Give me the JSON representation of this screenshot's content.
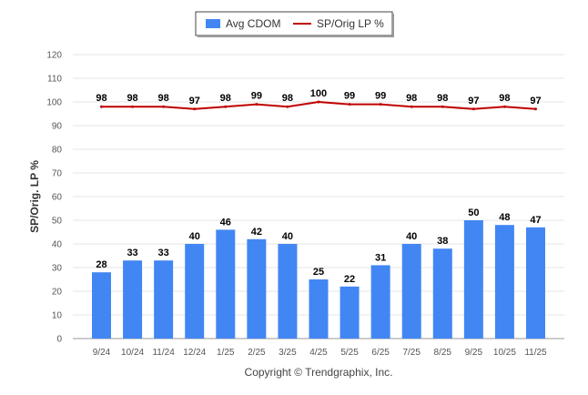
{
  "chart_data": {
    "type": "bar",
    "categories": [
      "9/24",
      "10/24",
      "11/24",
      "12/24",
      "1/25",
      "2/25",
      "3/25",
      "4/25",
      "5/25",
      "6/25",
      "7/25",
      "8/25",
      "9/25",
      "10/25",
      "11/25"
    ],
    "series": [
      {
        "name": "Avg CDOM",
        "type": "bar",
        "color": "#4286f4",
        "values": [
          28,
          33,
          33,
          40,
          46,
          42,
          40,
          25,
          22,
          31,
          40,
          38,
          50,
          48,
          47
        ]
      },
      {
        "name": "SP/Orig LP %",
        "type": "line",
        "color": "#c00000",
        "values": [
          98,
          98,
          98,
          97,
          98,
          99,
          98,
          100,
          99,
          99,
          98,
          98,
          97,
          98,
          97
        ]
      }
    ],
    "ylabel": "SP/Orig. LP %",
    "ylim": [
      0,
      120
    ],
    "yticks": [
      0,
      10,
      20,
      30,
      40,
      50,
      60,
      70,
      80,
      90,
      100,
      110,
      120
    ],
    "grid": true,
    "legend_position": "top-center"
  },
  "footer": {
    "copyright": "Copyright © Trendgraphix, Inc."
  }
}
